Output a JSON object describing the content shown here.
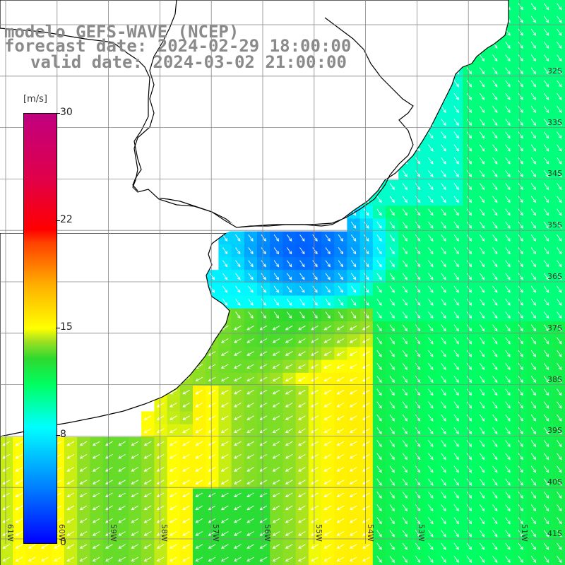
{
  "header": {
    "line1": "modelo GEFS-WAVE (NCEP)",
    "line2": "forecast date: 2024-02-29 18:00:00",
    "line3": "valid date: 2024-03-02 21:00:00"
  },
  "colorbar": {
    "unit": "[m/s]",
    "ticks": [
      "30",
      "22",
      "15",
      "8",
      "0"
    ]
  },
  "lat_labels": [
    "32S",
    "33S",
    "34S",
    "35S",
    "36S",
    "37S",
    "38S",
    "39S",
    "40S",
    "41S"
  ],
  "lon_labels": [
    "61W",
    "60W",
    "59W",
    "58W",
    "57W",
    "56W",
    "55W",
    "54W",
    "53W",
    "51W"
  ],
  "colors": {
    "land": "#ffffff",
    "coast": "#000000",
    "grid": "#888888",
    "arrows": "#ffffff"
  }
}
